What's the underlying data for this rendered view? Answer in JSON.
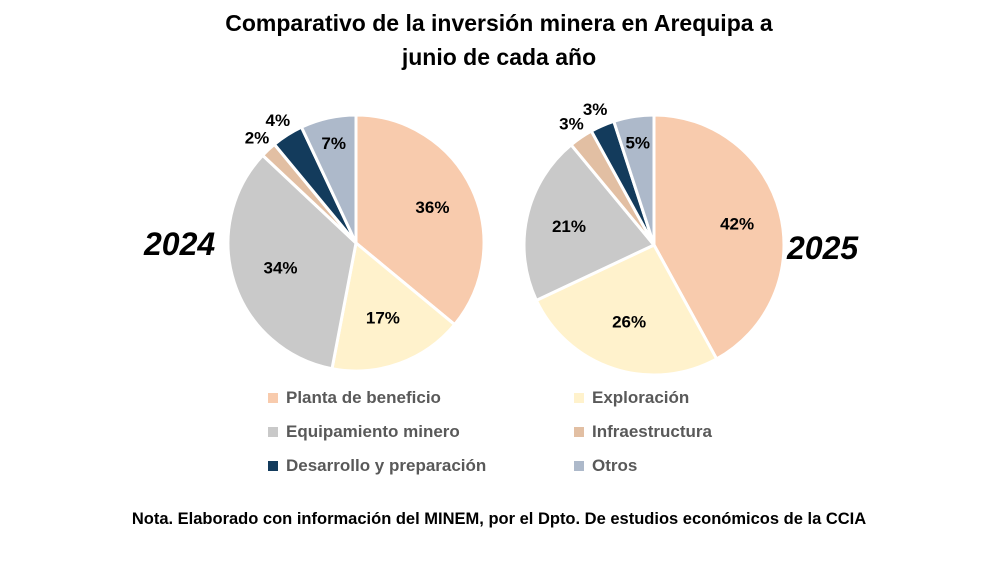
{
  "chart_data": {
    "type": "pie",
    "title": "Comparativo de la inversión minera en Arequipa a junio de cada año",
    "title_lines": [
      "Comparativo de la inversión minera en Arequipa a",
      "junio de cada año"
    ],
    "categories": [
      "Planta de beneficio",
      "Exploración",
      "Equipamiento minero",
      "Infraestructura",
      "Desarrollo y preparación",
      "Otros"
    ],
    "colors": [
      "#F8CBAD",
      "#FFF2CC",
      "#C9C9C9",
      "#E2BFA3",
      "#133B5C",
      "#ADB9CA"
    ],
    "series": [
      {
        "name": "2024",
        "values": [
          36,
          17,
          34,
          2,
          4,
          7
        ],
        "labels": [
          "36%",
          "17%",
          "34%",
          "2%",
          "4%",
          "7%"
        ]
      },
      {
        "name": "2025",
        "values": [
          42,
          26,
          21,
          3,
          3,
          5
        ],
        "labels": [
          "42%",
          "26%",
          "21%",
          "3%",
          "3%",
          "5%"
        ]
      }
    ],
    "legend_position": "bottom",
    "note": "Nota. Elaborado con información del MINEM, por el Dpto. De estudios económicos de la CCIA"
  }
}
